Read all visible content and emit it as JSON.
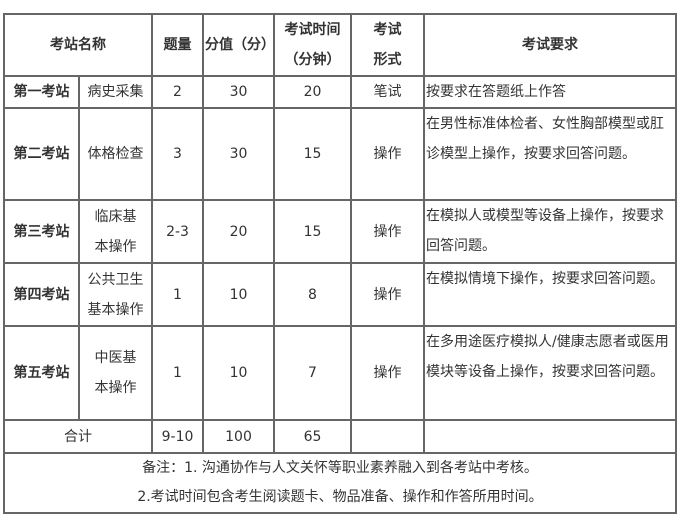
{
  "header": {
    "station_name": "考站名称",
    "question_count": "题量",
    "score": "分值（分）",
    "time": "考试时间（分钟）",
    "form": "考试形式",
    "requirement": "考试要求"
  },
  "rows": [
    {
      "station": "第一考站",
      "item": "病史采集",
      "count": "2",
      "score": "30",
      "time": "20",
      "form": "笔试",
      "requirement": "按要求在答题纸上作答"
    },
    {
      "station": "第二考站",
      "item": "体格检查",
      "count": "3",
      "score": "30",
      "time": "15",
      "form": "操作",
      "requirement": "在男性标准体检者、女性胸部模型或肛诊模型上操作，按要求回答问题。"
    },
    {
      "station": "第三考站",
      "item": "临床基本操作",
      "count": "2-3",
      "score": "20",
      "time": "15",
      "form": "操作",
      "requirement": "在模拟人或模型等设备上操作，按要求回答问题。"
    },
    {
      "station": "第四考站",
      "item": "公共卫生基本操作",
      "count": "1",
      "score": "10",
      "time": "8",
      "form": "操作",
      "requirement": "在模拟情境下操作，按要求回答问题。"
    },
    {
      "station": "第五考站",
      "item": "中医基本操作",
      "count": "1",
      "score": "10",
      "time": "7",
      "form": "操作",
      "requirement": "在多用途医疗模拟人/健康志愿者或医用模块等设备上操作，按要求回答问题。"
    }
  ],
  "total": {
    "label": "合计",
    "count": "9-10",
    "score": "100",
    "time": "65"
  },
  "notes": [
    "备注：1. 沟通协作与人文关怀等职业素养融入到各考站中考核。",
    "2.考试时间包含考生阅读题卡、物品准备、操作和作答所用时间。"
  ]
}
